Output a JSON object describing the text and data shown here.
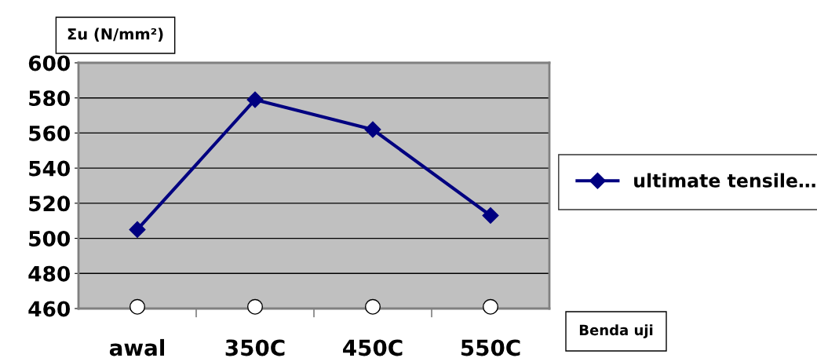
{
  "chart_data": {
    "type": "line",
    "ylabel": "Σu (N/mm²)",
    "xlabel": "Benda uji",
    "categories": [
      "awal",
      "350C",
      "450C",
      "550C"
    ],
    "series": [
      {
        "name": "ultimate tensile…",
        "color": "#000080",
        "values": [
          505,
          579,
          562,
          513
        ],
        "marker": "diamond"
      },
      {
        "type": "scatter",
        "color": "#ffffff",
        "values": [
          461,
          461,
          461,
          461
        ],
        "marker": "circle"
      }
    ],
    "ylim": [
      460,
      600
    ],
    "yticks": [
      460,
      480,
      500,
      520,
      540,
      560,
      580,
      600
    ],
    "grid": "y",
    "legend": "right"
  }
}
